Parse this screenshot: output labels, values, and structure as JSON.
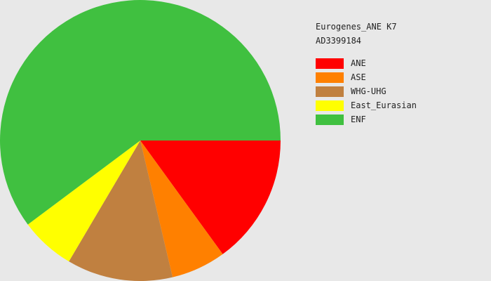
{
  "chart_data": {
    "type": "pie",
    "title": "Eurogenes_ANE K7",
    "subtitle": "AD3399184",
    "legend": "right",
    "start": "3 o'clock",
    "direction": "clockwise",
    "slices": [
      {
        "label": "ANE",
        "value": 15.0,
        "color": "#ff0000"
      },
      {
        "label": "ASE",
        "value": 6.3,
        "color": "#ff8000"
      },
      {
        "label": "WHG-UHG",
        "value": 12.2,
        "color": "#c08040"
      },
      {
        "label": "East_Eurasian",
        "value": 6.3,
        "color": "#ffff00"
      },
      {
        "label": "ENF",
        "value": 60.2,
        "color": "#40c040"
      }
    ]
  }
}
